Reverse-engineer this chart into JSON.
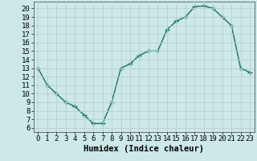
{
  "x": [
    0,
    1,
    2,
    3,
    4,
    5,
    6,
    7,
    8,
    9,
    10,
    11,
    12,
    13,
    14,
    15,
    16,
    17,
    18,
    19,
    20,
    21,
    22,
    23
  ],
  "y": [
    13.0,
    11.0,
    10.0,
    9.0,
    8.5,
    7.5,
    6.5,
    6.5,
    9.0,
    13.0,
    13.5,
    14.5,
    15.0,
    15.0,
    17.5,
    18.5,
    19.0,
    20.2,
    20.3,
    20.0,
    19.0,
    18.0,
    13.0,
    12.5
  ],
  "line_color": "#1a7060",
  "marker": "+",
  "markersize": 4,
  "linewidth": 1.0,
  "xlabel": "Humidex (Indice chaleur)",
  "xlim": [
    -0.5,
    23.5
  ],
  "ylim": [
    5.5,
    20.8
  ],
  "xtick_labels": [
    "0",
    "1",
    "2",
    "3",
    "4",
    "5",
    "6",
    "7",
    "8",
    "9",
    "10",
    "11",
    "12",
    "13",
    "14",
    "15",
    "16",
    "17",
    "18",
    "19",
    "20",
    "21",
    "22",
    "23"
  ],
  "ytick_vals": [
    6,
    7,
    8,
    9,
    10,
    11,
    12,
    13,
    14,
    15,
    16,
    17,
    18,
    19,
    20
  ],
  "bg_color": "#cce8e8",
  "grid_color": "#b8d0d0",
  "xlabel_fontsize": 7.5,
  "tick_fontsize": 6.5
}
